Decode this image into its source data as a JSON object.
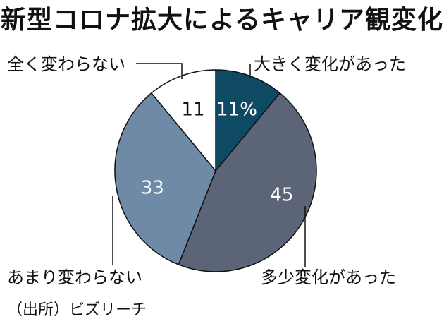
{
  "chart_data": {
    "type": "pie",
    "title": "新型コロナ拡大によるキャリア観変化",
    "categories": [
      "大きく変化があった",
      "多少変化があった",
      "あまり変わらない",
      "全く変わらない"
    ],
    "values": [
      11,
      45,
      33,
      11
    ],
    "value_labels": [
      "11%",
      "45",
      "33",
      "11"
    ],
    "colors": [
      "#0f4a64",
      "#5c6578",
      "#6e8aa6",
      "#ffffff"
    ],
    "label_colors": [
      "#ffffff",
      "#ffffff",
      "#ffffff",
      "#111111"
    ],
    "start": "12 o'clock",
    "direction": "clockwise",
    "legend": "none",
    "source": "（出所）ビズリーチ"
  }
}
